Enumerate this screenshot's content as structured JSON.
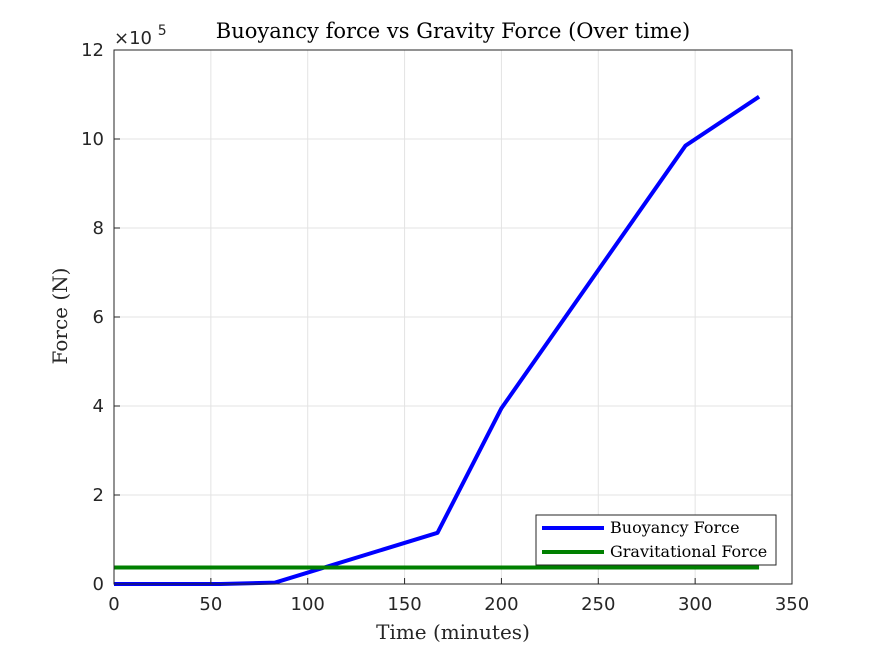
{
  "chart_data": {
    "type": "line",
    "title": "Buoyancy force vs Gravity Force (Over time)",
    "xlabel": "Time (minutes)",
    "ylabel": "Force (N)",
    "y_exponent_label": "×10",
    "y_exponent_power": "5",
    "xlim": [
      0,
      350
    ],
    "ylim": [
      0,
      12
    ],
    "y_scale_factor": 100000,
    "x_ticks": [
      0,
      50,
      100,
      150,
      200,
      250,
      300,
      350
    ],
    "x_tick_labels": [
      "0",
      "50",
      "100",
      "150",
      "200",
      "250",
      "300",
      "350"
    ],
    "y_ticks": [
      0,
      2,
      4,
      6,
      8,
      10,
      12
    ],
    "y_tick_labels": [
      "0",
      "2",
      "4",
      "6",
      "8",
      "10",
      "12"
    ],
    "grid": true,
    "legend_position": "bottom-right",
    "series": [
      {
        "name": "Buoyancy Force",
        "color": "#0000ff",
        "x": [
          0,
          55,
          83,
          167,
          200,
          295,
          333
        ],
        "y": [
          0,
          0,
          0.03,
          1.15,
          3.95,
          9.85,
          10.95
        ]
      },
      {
        "name": "Gravitational Force",
        "color": "#008000",
        "x": [
          0,
          333
        ],
        "y": [
          0.37,
          0.37
        ]
      }
    ]
  }
}
